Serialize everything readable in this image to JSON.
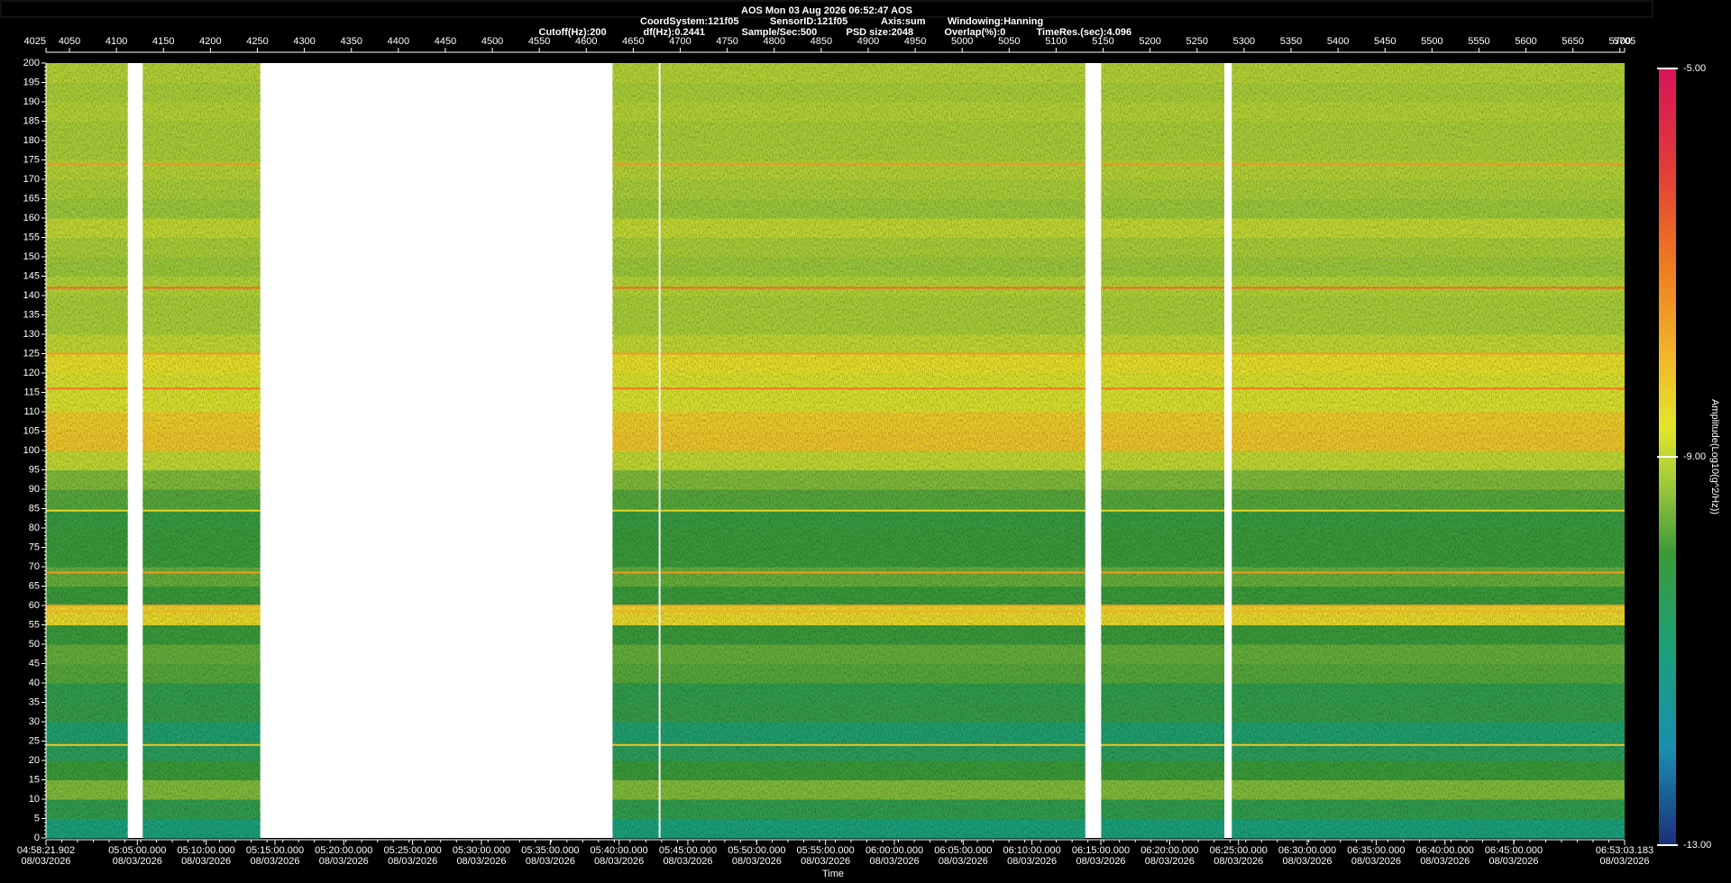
{
  "header": {
    "title": "AOS  Mon 03 Aug 2026 06:52:47  AOS",
    "line2": [
      "CoordSystem:121f05",
      "SensorID:121f05",
      "Axis:sum",
      "Windowing:Hanning"
    ],
    "line3": [
      "Cutoff(Hz):200",
      "df(Hz):0.2441",
      "Sample/Sec:500",
      "PSD size:2048",
      "Overlap(%):0",
      "TimeRes.(sec):4.096"
    ]
  },
  "chart_data": {
    "type": "spectrogram",
    "x_label": "Time",
    "colorbar_label": "Amplitude(Log10(g^2/Hz))",
    "xlim": [
      4025,
      5705
    ],
    "xticks": [
      4025,
      4050,
      4100,
      4150,
      4200,
      4250,
      4300,
      4350,
      4400,
      4450,
      4500,
      4550,
      4600,
      4650,
      4700,
      4750,
      4800,
      4850,
      4900,
      4950,
      5000,
      5050,
      5100,
      5150,
      5200,
      5250,
      5300,
      5350,
      5400,
      5450,
      5500,
      5550,
      5600,
      5650,
      5700,
      5705
    ],
    "time_ticks": [
      {
        "value": 4025,
        "label": "04:58:21.902"
      },
      {
        "value": 4122.2,
        "label": "05:05:00.000"
      },
      {
        "value": 4195.4,
        "label": "05:10:00.000"
      },
      {
        "value": 4268.7,
        "label": "05:15:00.000"
      },
      {
        "value": 4341.9,
        "label": "05:20:00.000"
      },
      {
        "value": 4415.2,
        "label": "05:25:00.000"
      },
      {
        "value": 4488.4,
        "label": "05:30:00.000"
      },
      {
        "value": 4561.7,
        "label": "05:35:00.000"
      },
      {
        "value": 4634.9,
        "label": "05:40:00.000"
      },
      {
        "value": 4708.1,
        "label": "05:45:00.000"
      },
      {
        "value": 4781.4,
        "label": "05:50:00.000"
      },
      {
        "value": 4854.6,
        "label": "05:55:00.000"
      },
      {
        "value": 4927.9,
        "label": "06:00:00.000"
      },
      {
        "value": 5001.1,
        "label": "06:05:00.000"
      },
      {
        "value": 5074.3,
        "label": "06:10:00.000"
      },
      {
        "value": 5147.6,
        "label": "06:15:00.000"
      },
      {
        "value": 5220.8,
        "label": "06:20:00.000"
      },
      {
        "value": 5294.1,
        "label": "06:25:00.000"
      },
      {
        "value": 5367.3,
        "label": "06:30:00.000"
      },
      {
        "value": 5440.6,
        "label": "06:35:00.000"
      },
      {
        "value": 5513.8,
        "label": "06:40:00.000"
      },
      {
        "value": 5587.0,
        "label": "06:45:00.000"
      },
      {
        "value": 5705,
        "label": "06:53:03.183"
      }
    ],
    "time_dates": [
      "08/03/2026",
      "08/03/2026",
      "08/03/2026",
      "08/03/2026",
      "08/03/2026",
      "08/03/2026",
      "08/03/2026",
      "08/03/2026",
      "08/03/2026",
      "08/03/2026",
      "08/03/2026",
      "08/03/2026",
      "08/03/2026",
      "08/03/2026",
      "08/03/2026",
      "08/03/2026",
      "08/03/2026",
      "08/03/2026",
      "08/03/2026",
      "08/03/2026",
      "08/03/2026",
      "08/03/2026",
      "08/03/2026"
    ],
    "ylim": [
      0,
      200
    ],
    "yticks": [
      0,
      5,
      10,
      15,
      20,
      25,
      30,
      35,
      40,
      45,
      50,
      55,
      60,
      65,
      70,
      75,
      80,
      85,
      90,
      95,
      100,
      105,
      110,
      115,
      120,
      125,
      130,
      135,
      140,
      145,
      150,
      155,
      160,
      165,
      170,
      175,
      180,
      185,
      190,
      195,
      200
    ],
    "segments": [
      [
        4025,
        4112
      ],
      [
        4128,
        4253
      ],
      [
        4628,
        4677
      ],
      [
        4679,
        5131
      ],
      [
        5148,
        5279
      ],
      [
        5287,
        5705
      ]
    ],
    "frequency_bins": [
      0,
      5,
      10,
      15,
      20,
      25,
      30,
      35,
      40,
      45,
      50,
      55,
      60,
      65,
      70,
      75,
      80,
      85,
      90,
      95,
      100,
      105,
      110,
      115,
      120,
      125,
      130,
      135,
      140,
      145,
      150,
      155,
      160,
      165,
      170,
      175,
      180,
      185,
      190,
      195,
      200
    ],
    "amplitude": [
      -11,
      -10.3,
      -9.5,
      -10,
      -10.5,
      -10.8,
      -10.2,
      -10.3,
      -9.8,
      -9.7,
      -10,
      -8.5,
      -10,
      -9.7,
      -10,
      -10,
      -10.1,
      -9.8,
      -9.5,
      -9,
      -8.2,
      -8.3,
      -8.8,
      -8.8,
      -8.6,
      -9,
      -9.2,
      -9.2,
      -9.1,
      -9.3,
      -9.2,
      -9,
      -9.3,
      -9.2,
      -9.1,
      -9.2,
      -9.2,
      -9.1,
      -9.2,
      -9.1
    ],
    "lines": [
      {
        "frequency": 174,
        "amplitude": -7.5
      },
      {
        "frequency": 142,
        "amplitude": -6.8
      },
      {
        "frequency": 125,
        "amplitude": -7.5
      },
      {
        "frequency": 116,
        "amplitude": -7
      },
      {
        "frequency": 84.5,
        "amplitude": -8.5
      },
      {
        "frequency": 68.5,
        "amplitude": -7.5
      },
      {
        "frequency": 60,
        "amplitude": -7.5
      },
      {
        "frequency": 58.5,
        "amplitude": -7.8
      },
      {
        "frequency": 24,
        "amplitude": -8.2
      }
    ],
    "clim": [
      -13,
      -5
    ],
    "cticks": [
      {
        "value": -13,
        "label": "-13.00"
      },
      {
        "value": -9,
        "label": "-9.00"
      },
      {
        "value": -5,
        "label": "-5.00"
      }
    ],
    "colorscale": [
      {
        "value": -13,
        "color": "#1b2f7a"
      },
      {
        "value": -12,
        "color": "#1a8fb0"
      },
      {
        "value": -11,
        "color": "#1aa07a"
      },
      {
        "value": -10,
        "color": "#3a9a3a"
      },
      {
        "value": -9.3,
        "color": "#9cc83a"
      },
      {
        "value": -8.7,
        "color": "#e4e62a"
      },
      {
        "value": -8,
        "color": "#f2b82a"
      },
      {
        "value": -7,
        "color": "#ee7a20"
      },
      {
        "value": -6,
        "color": "#e23a3a"
      },
      {
        "value": -5,
        "color": "#d8145a"
      }
    ]
  }
}
